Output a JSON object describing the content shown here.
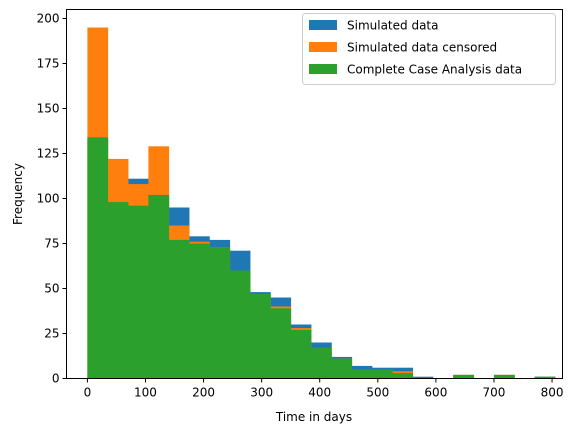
{
  "chart_data": {
    "type": "bar",
    "title": "",
    "xlabel": "Time in days",
    "ylabel": "Frequency",
    "xlim": [
      -36,
      818
    ],
    "ylim": [
      0,
      205
    ],
    "xticks": [
      0,
      100,
      200,
      300,
      400,
      500,
      600,
      700,
      800
    ],
    "yticks": [
      0,
      25,
      50,
      75,
      100,
      125,
      150,
      175,
      200
    ],
    "legend": {
      "position": "top-right"
    },
    "series": [
      {
        "name": "Simulated data",
        "color": "#1f77b4",
        "bin_edges": [
          0,
          35,
          70,
          105,
          140,
          175,
          210,
          245,
          280,
          315,
          350,
          385,
          420,
          455,
          490,
          525,
          560,
          595,
          630,
          665,
          700,
          735,
          770,
          805
        ],
        "values": [
          133,
          98,
          111,
          102,
          95,
          79,
          77,
          71,
          48,
          45,
          30,
          20,
          12,
          7,
          6,
          6,
          1,
          0,
          2,
          0,
          2,
          0,
          1
        ]
      },
      {
        "name": "Simulated data censored",
        "color": "#ff7f0e",
        "bin_edges": [
          0,
          35,
          70,
          105,
          140,
          175,
          210,
          245,
          280,
          315,
          350,
          385,
          420,
          455,
          490,
          525,
          560,
          595,
          630,
          665,
          700,
          735
        ],
        "values": [
          195,
          122,
          108,
          129,
          85,
          76,
          73,
          47,
          45,
          40,
          28,
          17,
          11,
          5,
          5,
          4,
          0,
          0,
          2,
          0,
          2
        ]
      },
      {
        "name": "Complete Case Analysis data",
        "color": "#2ca02c",
        "bin_edges": [
          0,
          35,
          70,
          105,
          140,
          175,
          210,
          245,
          280,
          315,
          350,
          385,
          420,
          455,
          490,
          525,
          560,
          595,
          630,
          665,
          700,
          735,
          770,
          805
        ],
        "values": [
          134,
          98,
          96,
          102,
          77,
          75,
          73,
          60,
          47,
          39,
          27,
          17,
          11,
          5,
          5,
          3,
          0,
          0,
          2,
          0,
          2,
          0,
          1
        ]
      }
    ]
  }
}
